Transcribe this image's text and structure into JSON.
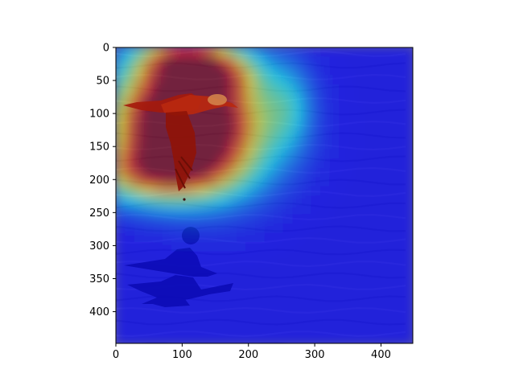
{
  "chart_data": {
    "type": "heatmap",
    "description_kind": "image-with-attention-overlay",
    "colormap": "jet",
    "x_ticks": [
      0,
      100,
      200,
      300,
      400
    ],
    "y_ticks": [
      0,
      50,
      100,
      150,
      200,
      250,
      300,
      350,
      400
    ],
    "xlim": [
      0,
      448
    ],
    "ylim": [
      448,
      0
    ],
    "hotspots": [
      {
        "x": 80,
        "y": 110,
        "sigma_x": 62,
        "sigma_y": 58,
        "weight": 1.0
      },
      {
        "x": 150,
        "y": 120,
        "sigma_x": 65,
        "sigma_y": 65,
        "weight": 0.7
      },
      {
        "x": 100,
        "y": 20,
        "sigma_x": 45,
        "sigma_y": 25,
        "weight": 0.6
      },
      {
        "x": 60,
        "y": 190,
        "sigma_x": 70,
        "sigma_y": 30,
        "weight": 0.55
      },
      {
        "x": 160,
        "y": 40,
        "sigma_x": 40,
        "sigma_y": 25,
        "weight": 0.35
      },
      {
        "x": 260,
        "y": 90,
        "sigma_x": 25,
        "sigma_y": 45,
        "weight": 0.2
      }
    ],
    "colors": {
      "water_base": "#5c5aa6",
      "water_dark": "#3f3d86",
      "bird_body": "#b21d0c",
      "bird_wing": "#8e1508",
      "bird_head": "#d87a3a",
      "reflection": "#1a1a3e",
      "axis": "#000000"
    }
  }
}
